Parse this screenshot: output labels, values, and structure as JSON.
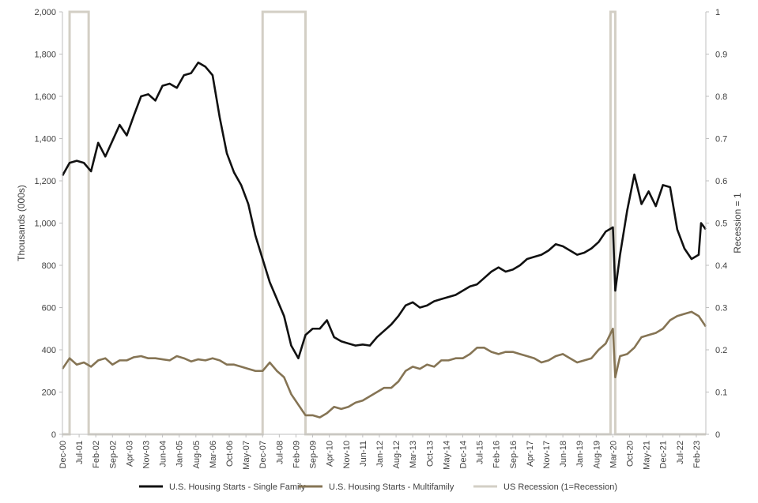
{
  "colors": {
    "single_family": "#111111",
    "multifamily": "#857454",
    "recession": "#d3cfc5",
    "axis": "#bfbfbf",
    "text": "#404040"
  },
  "chart_data": {
    "type": "line",
    "xlabel": "",
    "ylabel": "Thousands (000s)",
    "y2label": "Recession = 1",
    "ylim": [
      0,
      2000
    ],
    "y2lim": [
      0,
      1
    ],
    "y_ticks": [
      "0",
      "200",
      "400",
      "600",
      "800",
      "1,000",
      "1,200",
      "1,400",
      "1,600",
      "1,800",
      "2,000"
    ],
    "y2_ticks": [
      "0",
      "0.1",
      "0.2",
      "0.3",
      "0.4",
      "0.5",
      "0.6",
      "0.7",
      "0.8",
      "0.9",
      "1"
    ],
    "x_start": "Dec-00",
    "x_end": "Jun-23",
    "x_tick_labels": [
      "Dec-00",
      "Jul-01",
      "Feb-02",
      "Sep-02",
      "Apr-03",
      "Nov-03",
      "Jun-04",
      "Jan-05",
      "Aug-05",
      "Mar-06",
      "Oct-06",
      "May-07",
      "Dec-07",
      "Jul-08",
      "Feb-09",
      "Sep-09",
      "Apr-10",
      "Nov-10",
      "Jun-11",
      "Jan-12",
      "Aug-12",
      "Mar-13",
      "Oct-13",
      "May-14",
      "Dec-14",
      "Jul-15",
      "Feb-16",
      "Sep-16",
      "Apr-17",
      "Nov-17",
      "Jun-18",
      "Jan-19",
      "Aug-19",
      "Mar-20",
      "Oct-20",
      "May-21",
      "Dec-21",
      "Jul-22",
      "Feb-23"
    ],
    "grid": false,
    "legend_position": "bottom",
    "series": [
      {
        "name": "U.S. Housing Starts - Single Family",
        "axis": "left",
        "color": "#111111",
        "points": [
          [
            "Dec-00",
            1225
          ],
          [
            "Mar-01",
            1285
          ],
          [
            "Jun-01",
            1295
          ],
          [
            "Sep-01",
            1285
          ],
          [
            "Dec-01",
            1245
          ],
          [
            "Mar-02",
            1380
          ],
          [
            "Jun-02",
            1315
          ],
          [
            "Sep-02",
            1390
          ],
          [
            "Dec-02",
            1465
          ],
          [
            "Mar-03",
            1415
          ],
          [
            "Jun-03",
            1510
          ],
          [
            "Sep-03",
            1600
          ],
          [
            "Dec-03",
            1610
          ],
          [
            "Mar-04",
            1580
          ],
          [
            "Jun-04",
            1650
          ],
          [
            "Sep-04",
            1660
          ],
          [
            "Dec-04",
            1640
          ],
          [
            "Mar-05",
            1700
          ],
          [
            "Jun-05",
            1710
          ],
          [
            "Sep-05",
            1760
          ],
          [
            "Dec-05",
            1740
          ],
          [
            "Mar-06",
            1700
          ],
          [
            "Jun-06",
            1500
          ],
          [
            "Sep-06",
            1330
          ],
          [
            "Dec-06",
            1240
          ],
          [
            "Mar-07",
            1180
          ],
          [
            "Jun-07",
            1090
          ],
          [
            "Sep-07",
            940
          ],
          [
            "Dec-07",
            830
          ],
          [
            "Mar-08",
            720
          ],
          [
            "Jun-08",
            640
          ],
          [
            "Sep-08",
            560
          ],
          [
            "Dec-08",
            420
          ],
          [
            "Mar-09",
            360
          ],
          [
            "Jun-09",
            470
          ],
          [
            "Sep-09",
            500
          ],
          [
            "Dec-09",
            500
          ],
          [
            "Mar-10",
            540
          ],
          [
            "Jun-10",
            460
          ],
          [
            "Sep-10",
            440
          ],
          [
            "Dec-10",
            430
          ],
          [
            "Mar-11",
            420
          ],
          [
            "Jun-11",
            425
          ],
          [
            "Sep-11",
            420
          ],
          [
            "Dec-11",
            460
          ],
          [
            "Mar-12",
            490
          ],
          [
            "Jun-12",
            520
          ],
          [
            "Sep-12",
            560
          ],
          [
            "Dec-12",
            610
          ],
          [
            "Mar-13",
            625
          ],
          [
            "Jun-13",
            600
          ],
          [
            "Sep-13",
            610
          ],
          [
            "Dec-13",
            630
          ],
          [
            "Mar-14",
            640
          ],
          [
            "Jun-14",
            650
          ],
          [
            "Sep-14",
            660
          ],
          [
            "Dec-14",
            680
          ],
          [
            "Mar-15",
            700
          ],
          [
            "Jun-15",
            710
          ],
          [
            "Sep-15",
            740
          ],
          [
            "Dec-15",
            770
          ],
          [
            "Mar-16",
            790
          ],
          [
            "Jun-16",
            770
          ],
          [
            "Sep-16",
            780
          ],
          [
            "Dec-16",
            800
          ],
          [
            "Mar-17",
            830
          ],
          [
            "Jun-17",
            840
          ],
          [
            "Sep-17",
            850
          ],
          [
            "Dec-17",
            870
          ],
          [
            "Mar-18",
            900
          ],
          [
            "Jun-18",
            890
          ],
          [
            "Sep-18",
            870
          ],
          [
            "Dec-18",
            850
          ],
          [
            "Mar-19",
            860
          ],
          [
            "Jun-19",
            880
          ],
          [
            "Sep-19",
            910
          ],
          [
            "Dec-19",
            960
          ],
          [
            "Mar-20",
            980
          ],
          [
            "Apr-20",
            680
          ],
          [
            "Jun-20",
            850
          ],
          [
            "Sep-20",
            1060
          ],
          [
            "Dec-20",
            1230
          ],
          [
            "Mar-21",
            1090
          ],
          [
            "Jun-21",
            1150
          ],
          [
            "Sep-21",
            1080
          ],
          [
            "Dec-21",
            1180
          ],
          [
            "Mar-22",
            1170
          ],
          [
            "Jun-22",
            970
          ],
          [
            "Sep-22",
            880
          ],
          [
            "Dec-22",
            830
          ],
          [
            "Mar-23",
            850
          ],
          [
            "Apr-23",
            1000
          ],
          [
            "Jun-23",
            970
          ]
        ]
      },
      {
        "name": "U.S. Housing Starts - Multifamily",
        "axis": "left",
        "color": "#857454",
        "points": [
          [
            "Dec-00",
            310
          ],
          [
            "Mar-01",
            360
          ],
          [
            "Jun-01",
            330
          ],
          [
            "Sep-01",
            340
          ],
          [
            "Dec-01",
            320
          ],
          [
            "Mar-02",
            350
          ],
          [
            "Jun-02",
            360
          ],
          [
            "Sep-02",
            330
          ],
          [
            "Dec-02",
            350
          ],
          [
            "Mar-03",
            350
          ],
          [
            "Jun-03",
            365
          ],
          [
            "Sep-03",
            370
          ],
          [
            "Dec-03",
            360
          ],
          [
            "Mar-04",
            360
          ],
          [
            "Jun-04",
            355
          ],
          [
            "Sep-04",
            350
          ],
          [
            "Dec-04",
            370
          ],
          [
            "Mar-05",
            360
          ],
          [
            "Jun-05",
            345
          ],
          [
            "Sep-05",
            355
          ],
          [
            "Dec-05",
            350
          ],
          [
            "Mar-06",
            360
          ],
          [
            "Jun-06",
            350
          ],
          [
            "Sep-06",
            330
          ],
          [
            "Dec-06",
            330
          ],
          [
            "Mar-07",
            320
          ],
          [
            "Jun-07",
            310
          ],
          [
            "Sep-07",
            300
          ],
          [
            "Dec-07",
            300
          ],
          [
            "Mar-08",
            340
          ],
          [
            "Jun-08",
            300
          ],
          [
            "Sep-08",
            270
          ],
          [
            "Dec-08",
            190
          ],
          [
            "Mar-09",
            140
          ],
          [
            "Jun-09",
            90
          ],
          [
            "Sep-09",
            90
          ],
          [
            "Dec-09",
            80
          ],
          [
            "Mar-10",
            100
          ],
          [
            "Jun-10",
            130
          ],
          [
            "Sep-10",
            120
          ],
          [
            "Dec-10",
            130
          ],
          [
            "Mar-11",
            150
          ],
          [
            "Jun-11",
            160
          ],
          [
            "Sep-11",
            180
          ],
          [
            "Dec-11",
            200
          ],
          [
            "Mar-12",
            220
          ],
          [
            "Jun-12",
            220
          ],
          [
            "Sep-12",
            250
          ],
          [
            "Dec-12",
            300
          ],
          [
            "Mar-13",
            320
          ],
          [
            "Jun-13",
            310
          ],
          [
            "Sep-13",
            330
          ],
          [
            "Dec-13",
            320
          ],
          [
            "Mar-14",
            350
          ],
          [
            "Jun-14",
            350
          ],
          [
            "Sep-14",
            360
          ],
          [
            "Dec-14",
            360
          ],
          [
            "Mar-15",
            380
          ],
          [
            "Jun-15",
            410
          ],
          [
            "Sep-15",
            410
          ],
          [
            "Dec-15",
            390
          ],
          [
            "Mar-16",
            380
          ],
          [
            "Jun-16",
            390
          ],
          [
            "Sep-16",
            390
          ],
          [
            "Dec-16",
            380
          ],
          [
            "Mar-17",
            370
          ],
          [
            "Jun-17",
            360
          ],
          [
            "Sep-17",
            340
          ],
          [
            "Dec-17",
            350
          ],
          [
            "Mar-18",
            370
          ],
          [
            "Jun-18",
            380
          ],
          [
            "Sep-18",
            360
          ],
          [
            "Dec-18",
            340
          ],
          [
            "Mar-19",
            350
          ],
          [
            "Jun-19",
            360
          ],
          [
            "Sep-19",
            400
          ],
          [
            "Dec-19",
            430
          ],
          [
            "Mar-20",
            500
          ],
          [
            "Apr-20",
            270
          ],
          [
            "Jun-20",
            370
          ],
          [
            "Sep-20",
            380
          ],
          [
            "Dec-20",
            410
          ],
          [
            "Mar-21",
            460
          ],
          [
            "Jun-21",
            470
          ],
          [
            "Sep-21",
            480
          ],
          [
            "Dec-21",
            500
          ],
          [
            "Mar-22",
            540
          ],
          [
            "Jun-22",
            560
          ],
          [
            "Sep-22",
            570
          ],
          [
            "Dec-22",
            580
          ],
          [
            "Mar-23",
            560
          ],
          [
            "Jun-23",
            510
          ]
        ]
      },
      {
        "name": "US Recession (1=Recession)",
        "axis": "right",
        "color": "#d3cfc5",
        "periods": [
          {
            "start": "Mar-01",
            "end": "Nov-01",
            "value": 1
          },
          {
            "start": "Dec-07",
            "end": "Jun-09",
            "value": 1
          },
          {
            "start": "Feb-20",
            "end": "Apr-20",
            "value": 1
          }
        ]
      }
    ]
  }
}
